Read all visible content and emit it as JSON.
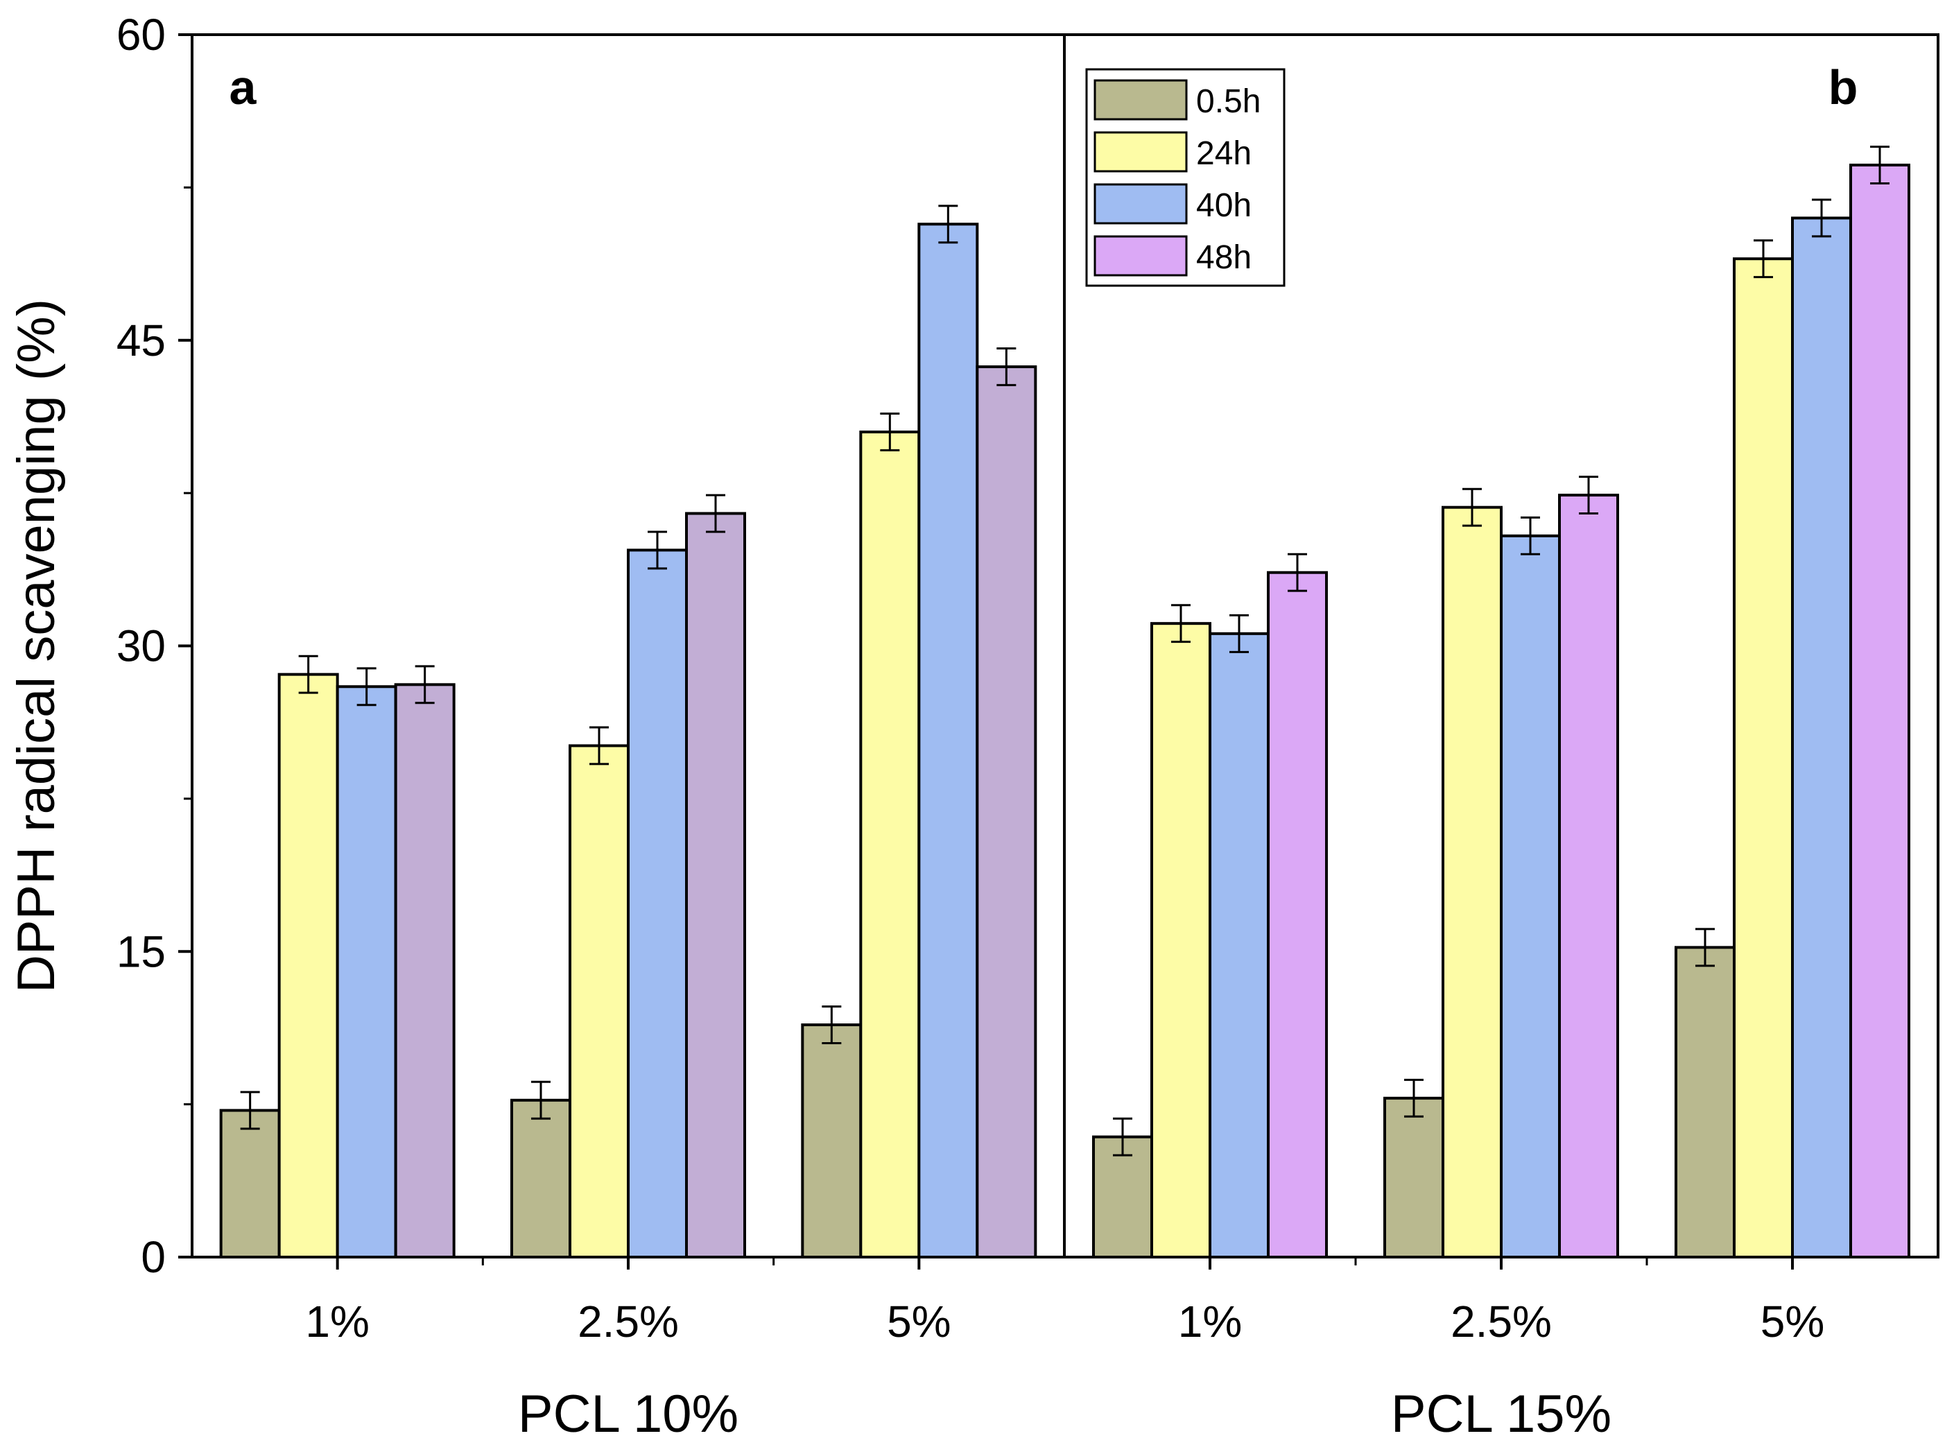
{
  "chart_data": {
    "type": "bar",
    "ylabel": "DPPH radical scavenging (%)",
    "ylim": [
      0,
      60
    ],
    "yticks": [
      "0",
      "15",
      "30",
      "45",
      "60"
    ],
    "legend_position": "top-left of panel b",
    "series": [
      {
        "name": "0.5h",
        "color_a": "#b9b98f",
        "color_b": "#b9b98f"
      },
      {
        "name": "24h",
        "color_a": "#fdfca6",
        "color_b": "#fdfca6"
      },
      {
        "name": "40h",
        "color_a": "#9fbcf2",
        "color_b": "#9fbcf2"
      },
      {
        "name": "48h",
        "color_a": "#c2aed5",
        "color_b": "#dba8f6"
      }
    ],
    "panels": [
      {
        "label": "a",
        "group_label": "PCL 10%",
        "categories": [
          {
            "label": "1%",
            "values": [
              7.2,
              28.6,
              28.0,
              28.1
            ],
            "errors": [
              0.9,
              0.9,
              0.9,
              0.9
            ]
          },
          {
            "label": "2.5%",
            "values": [
              7.7,
              25.1,
              34.7,
              36.5
            ],
            "errors": [
              0.9,
              0.9,
              0.9,
              0.9
            ]
          },
          {
            "label": "5%",
            "values": [
              11.4,
              40.5,
              50.7,
              43.7
            ],
            "errors": [
              0.9,
              0.9,
              0.9,
              0.9
            ]
          }
        ]
      },
      {
        "label": "b",
        "group_label": "PCL 15%",
        "categories": [
          {
            "label": "1%",
            "values": [
              5.9,
              31.1,
              30.6,
              33.6
            ],
            "errors": [
              0.9,
              0.9,
              0.9,
              0.9
            ]
          },
          {
            "label": "2.5%",
            "values": [
              7.8,
              36.8,
              35.4,
              37.4
            ],
            "errors": [
              0.9,
              0.9,
              0.9,
              0.9
            ]
          },
          {
            "label": "5%",
            "values": [
              15.2,
              49.0,
              51.0,
              53.6
            ],
            "errors": [
              0.9,
              0.9,
              0.9,
              0.9
            ]
          }
        ]
      }
    ]
  }
}
